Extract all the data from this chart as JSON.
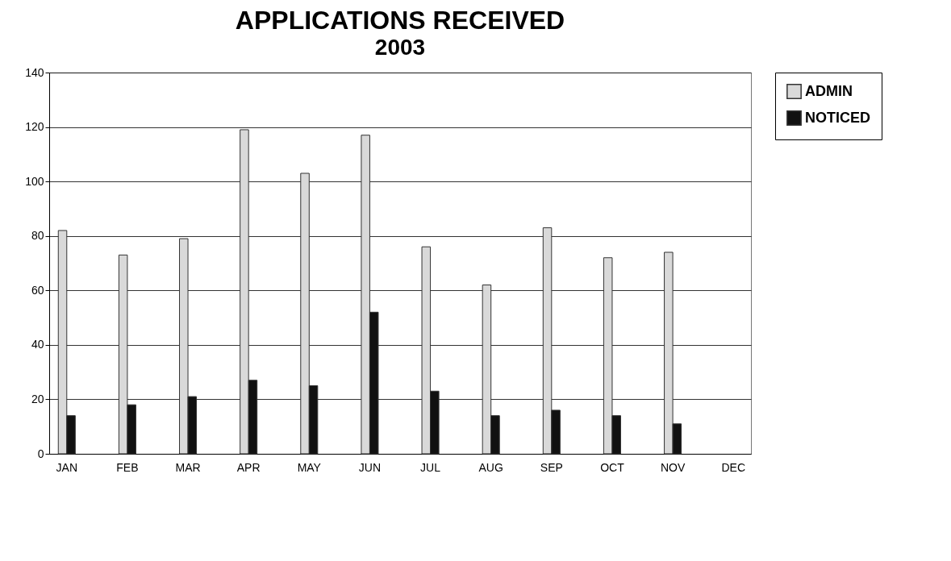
{
  "chart_data": {
    "type": "bar",
    "title": "APPLICATIONS RECEIVED",
    "subtitle": "2003",
    "categories": [
      "JAN",
      "FEB",
      "MAR",
      "APR",
      "MAY",
      "JUN",
      "JUL",
      "AUG",
      "SEP",
      "OCT",
      "NOV",
      "DEC"
    ],
    "series": [
      {
        "name": "ADMIN",
        "color": "#d9d9d9",
        "values": [
          82,
          73,
          79,
          119,
          103,
          117,
          76,
          62,
          83,
          72,
          74,
          null
        ]
      },
      {
        "name": "NOTICED",
        "color": "#111111",
        "values": [
          14,
          18,
          21,
          27,
          25,
          52,
          23,
          14,
          16,
          14,
          11,
          null
        ]
      }
    ],
    "ylim": [
      0,
      140
    ],
    "yticks": [
      0,
      20,
      40,
      60,
      80,
      100,
      120,
      140
    ],
    "grid": "y",
    "legend": "right"
  }
}
